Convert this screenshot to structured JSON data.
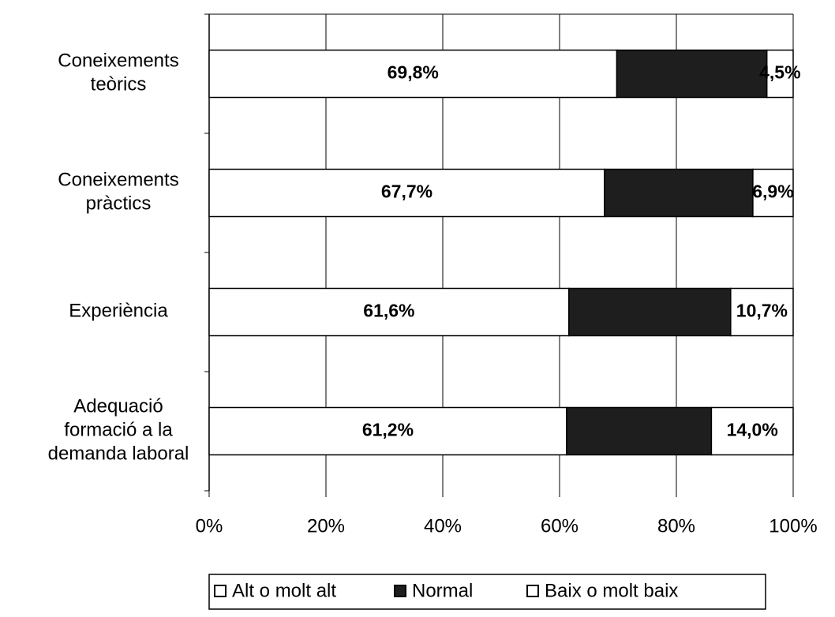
{
  "chart_data": {
    "type": "bar",
    "orientation": "horizontal",
    "stacked": true,
    "categories": [
      "Coneixements\nteòrics",
      "Coneixements\npràctics",
      "Experiència",
      "Adequació\nformació a la\ndemanda laboral"
    ],
    "series": [
      {
        "name": "Alt o molt alt",
        "color": "#ffffff",
        "values": [
          69.8,
          67.7,
          61.6,
          61.2
        ],
        "value_labels": [
          "69,8%",
          "67,7%",
          "61,6%",
          "61,2%"
        ]
      },
      {
        "name": "Normal",
        "color": "#1e1e1e",
        "values": [
          25.7,
          25.4,
          27.7,
          24.8
        ]
      },
      {
        "name": "Baix o molt baix",
        "color": "#ffffff",
        "values": [
          4.5,
          6.9,
          10.7,
          14.0
        ],
        "value_labels": [
          "4,5%",
          "6,9%",
          "10,7%",
          "14,0%"
        ]
      }
    ],
    "xlim": [
      0,
      100
    ],
    "xticks": [
      {
        "value": 0,
        "label": "0%"
      },
      {
        "value": 20,
        "label": "20%"
      },
      {
        "value": 40,
        "label": "40%"
      },
      {
        "value": 60,
        "label": "60%"
      },
      {
        "value": 80,
        "label": "80%"
      },
      {
        "value": 100,
        "label": "100%"
      }
    ],
    "grid": true,
    "legend": "bottom"
  }
}
